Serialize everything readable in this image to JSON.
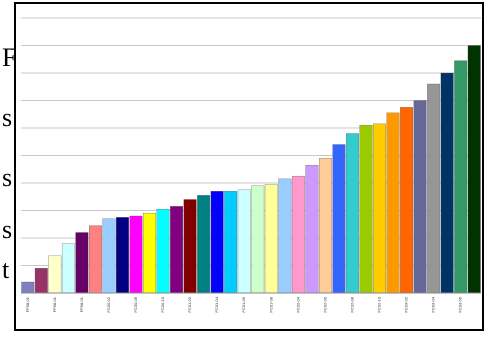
{
  "fragments": [
    "F",
    "s",
    "s",
    "s",
    "t"
  ],
  "chart_data": {
    "type": "bar",
    "categories": [
      "FP08-01",
      null,
      "FP08-01",
      null,
      "FP08-01",
      null,
      "FC00-02",
      null,
      "FC00-06",
      null,
      "FC00-10",
      null,
      "FC01-02",
      null,
      "FC01-04",
      null,
      "FC01-06",
      null,
      "FC01-08",
      null,
      "FC02-04",
      null,
      "FC02-06",
      null,
      "FC02-08",
      null,
      "FC02-10",
      null,
      "FC03-02",
      null,
      "FC03-04",
      null,
      "FC03-06",
      null
    ],
    "values": [
      0.4,
      0.9,
      1.35,
      1.8,
      2.2,
      2.45,
      2.7,
      2.75,
      2.8,
      2.9,
      3.05,
      3.15,
      3.4,
      3.55,
      3.7,
      3.7,
      3.75,
      3.9,
      3.95,
      4.15,
      4.25,
      4.65,
      4.9,
      5.4,
      5.8,
      6.1,
      6.15,
      6.55,
      6.75,
      7.0,
      7.6,
      8.0,
      8.45,
      9.0
    ],
    "colors": [
      "#8080c0",
      "#993366",
      "#ffffcc",
      "#ccffff",
      "#660066",
      "#ff8080",
      "#99ccff",
      "#000080",
      "#ff00ff",
      "#ffff00",
      "#00ffff",
      "#800080",
      "#800000",
      "#008080",
      "#0000ff",
      "#00ccff",
      "#ccffff",
      "#ccffcc",
      "#ffff99",
      "#99ccff",
      "#ff99cc",
      "#cc99ff",
      "#ffcc99",
      "#3366ff",
      "#33cccc",
      "#99cc00",
      "#ffcc00",
      "#ff9900",
      "#ff6600",
      "#666699",
      "#969696",
      "#003366",
      "#339966",
      "#003300"
    ],
    "ylim": [
      0,
      10
    ],
    "yticks": [
      0,
      1,
      2,
      3,
      4,
      5,
      6,
      7,
      8,
      9,
      10
    ],
    "grid": true
  }
}
